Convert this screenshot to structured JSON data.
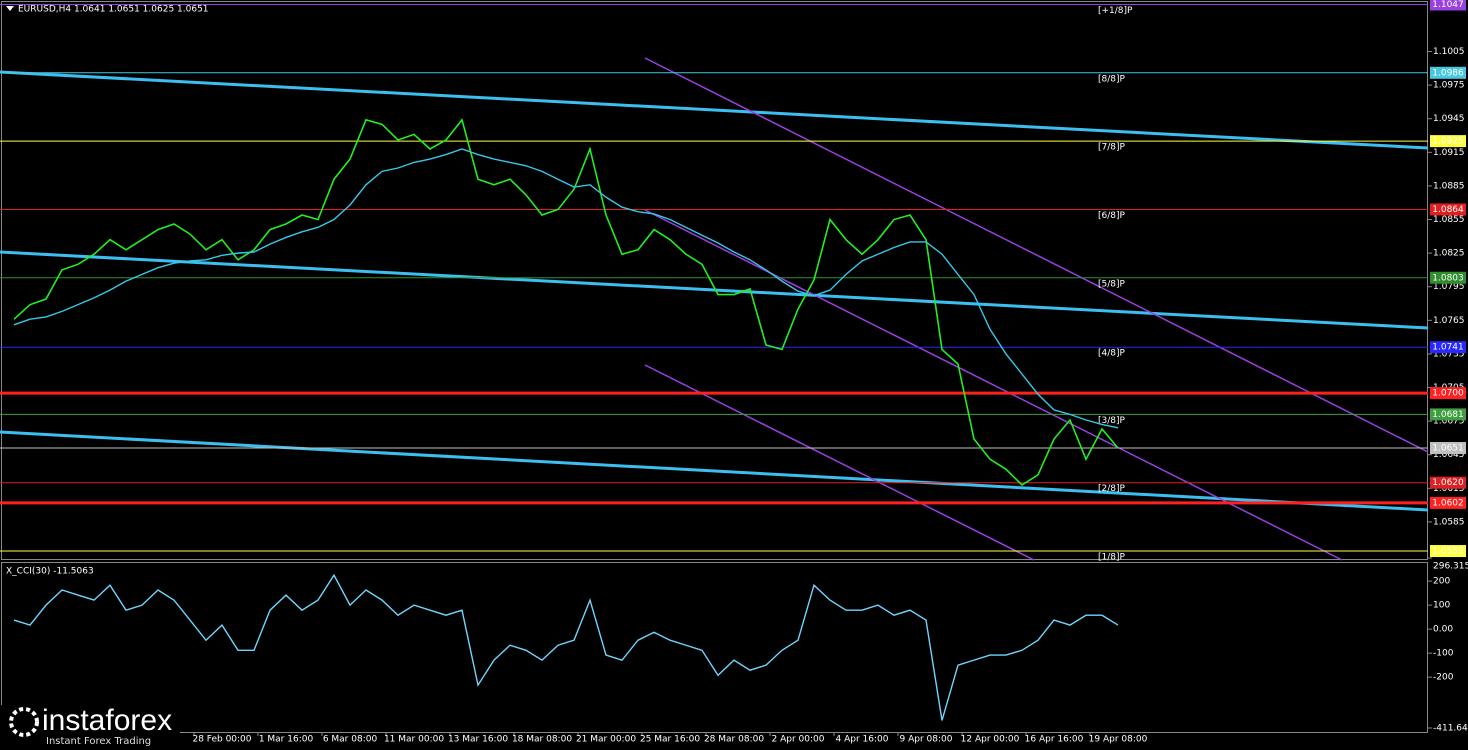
{
  "header": "EURUSD,H4  1.0641 1.0651 1.0625 1.0651",
  "watermark": {
    "brand": "instaforex",
    "tagline": "Instant Forex Trading"
  },
  "chart_data": [
    {
      "type": "line",
      "ylim": [
        1.0551,
        1.1051
      ],
      "yticks": [
        1.1005,
        1.0975,
        1.0945,
        1.0915,
        1.0885,
        1.0855,
        1.0825,
        1.0795,
        1.0765,
        1.0735,
        1.0705,
        1.0675,
        1.0645,
        1.0615,
        1.0585
      ],
      "categories": [
        null,
        null,
        null,
        null,
        null,
        null,
        null,
        null,
        null,
        null,
        null,
        null,
        null,
        "28 Feb 00:00",
        null,
        null,
        null,
        "1 Mar 16:00",
        null,
        null,
        null,
        "6 Mar 08:00",
        null,
        null,
        null,
        "11 Mar 00:00",
        null,
        null,
        null,
        "13 Mar 16:00",
        null,
        null,
        null,
        "18 Mar 08:00",
        null,
        null,
        null,
        "21 Mar 00:00",
        null,
        null,
        null,
        "25 Mar 16:00",
        null,
        null,
        null,
        "28 Mar 08:00",
        null,
        null,
        null,
        "2 Apr 00:00",
        null,
        null,
        null,
        "4 Apr 16:00",
        null,
        null,
        null,
        "9 Apr 08:00",
        null,
        null,
        null,
        "12 Apr 00:00",
        null,
        null,
        null,
        "16 Apr 16:00",
        null,
        null,
        null,
        "19 Apr 08:00"
      ],
      "series": [
        {
          "color": "#22ee22",
          "values": [
            1.0766,
            1.0779,
            1.0784,
            1.081,
            1.0815,
            1.0824,
            1.0837,
            1.0828,
            1.0837,
            1.0846,
            1.0851,
            1.0842,
            1.0828,
            1.0837,
            1.0819,
            1.0828,
            1.0846,
            1.0851,
            1.0859,
            1.0855,
            1.0891,
            1.0909,
            1.0944,
            1.094,
            1.0926,
            1.0931,
            1.0918,
            1.0926,
            1.0944,
            1.0891,
            1.0886,
            1.0891,
            1.0877,
            1.0859,
            1.0864,
            1.0882,
            1.0918,
            1.0859,
            1.0824,
            1.0828,
            1.0846,
            1.0837,
            1.0824,
            1.0815,
            1.0788,
            1.0788,
            1.0793,
            1.0743,
            1.0739,
            1.0775,
            1.0801,
            1.0855,
            1.0837,
            1.0824,
            1.0837,
            1.0855,
            1.0859,
            1.0837,
            1.0739,
            1.0726,
            1.0659,
            1.0641,
            1.0632,
            1.0618,
            1.0627,
            1.0659,
            1.0676,
            1.0641,
            1.0668,
            1.0651
          ]
        },
        {
          "color": "#36c8e8",
          "values": [
            1.0761,
            1.0766,
            1.0768,
            1.0773,
            1.0779,
            1.0785,
            1.0792,
            1.08,
            1.0806,
            1.0812,
            1.0816,
            1.0818,
            1.0819,
            1.0823,
            1.0825,
            1.0826,
            1.0833,
            1.0839,
            1.0844,
            1.0848,
            1.0855,
            1.0868,
            1.0886,
            1.0898,
            1.0901,
            1.0906,
            1.0909,
            1.0913,
            1.0918,
            1.0913,
            1.0909,
            1.0906,
            1.0903,
            1.0898,
            1.0891,
            1.0884,
            1.0886,
            1.0875,
            1.0866,
            1.0862,
            1.086,
            1.0855,
            1.0848,
            1.0841,
            1.0834,
            1.0826,
            1.0819,
            1.081,
            1.08,
            1.0791,
            1.0787,
            1.0792,
            1.0806,
            1.0818,
            1.0824,
            1.083,
            1.0835,
            1.0835,
            1.0824,
            1.0806,
            1.0788,
            1.0757,
            1.0735,
            1.0717,
            1.0699,
            1.0685,
            1.0681,
            1.0676,
            1.0672,
            1.0669
          ]
        }
      ],
      "levels": [
        {
          "value": 1.1047,
          "label": "[+1/8]P",
          "color": "#9a40e0"
        },
        {
          "value": 1.0986,
          "label": "[8/8]P",
          "color": "#48c8e0"
        },
        {
          "value": 1.0925,
          "label": "[7/8]P",
          "color": "#ffff40"
        },
        {
          "value": 1.0864,
          "label": "[6/8]P",
          "color": "#e02020"
        },
        {
          "value": 1.0803,
          "label": "[5/8]P",
          "color": "#2f8f2f"
        },
        {
          "value": 1.0741,
          "label": "[4/8]P",
          "color": "#2828ff"
        },
        {
          "value": 1.07,
          "value_label": "1.0700",
          "color": "#ff2020",
          "style": "thick"
        },
        {
          "value": 1.0681,
          "label": "[3/8]P",
          "color": "#3f9f3f"
        },
        {
          "value": 1.0651,
          "color": "#c0c0c0"
        },
        {
          "value": 1.062,
          "value_label": "1.0620",
          "label": "[2/8]P",
          "color": "#e02020"
        },
        {
          "value": 1.0602,
          "color": "#ff2020",
          "style": "thick"
        },
        {
          "value": 1.0559,
          "label": "[1/8]P",
          "color": "#ffff40"
        }
      ]
    },
    {
      "type": "line",
      "title": "X_CCI(30) -11.5063",
      "ylim": [
        -411.643,
        296.3154
      ],
      "yticks": [
        296.3154,
        200,
        100,
        {
          "value": 0,
          "label": "0.00"
        },
        -100,
        -200,
        -411.643
      ],
      "series": [
        {
          "color": "#6fd5ff",
          "values": [
            38,
            17,
            100,
            163,
            142,
            121,
            183,
            79,
            100,
            163,
            121,
            38,
            -46,
            17,
            -88,
            -88,
            79,
            142,
            79,
            121,
            225,
            100,
            163,
            121,
            58,
            100,
            79,
            58,
            79,
            -233,
            -129,
            -67,
            -88,
            -129,
            -67,
            -46,
            121,
            -108,
            -129,
            -46,
            -13,
            -46,
            -67,
            -88,
            -192,
            -129,
            -171,
            -150,
            -88,
            -46,
            183,
            121,
            79,
            79,
            100,
            58,
            79,
            38,
            -380,
            -150,
            -129,
            -108,
            -108,
            -88,
            -46,
            38,
            17,
            58,
            58,
            17
          ]
        }
      ]
    }
  ]
}
